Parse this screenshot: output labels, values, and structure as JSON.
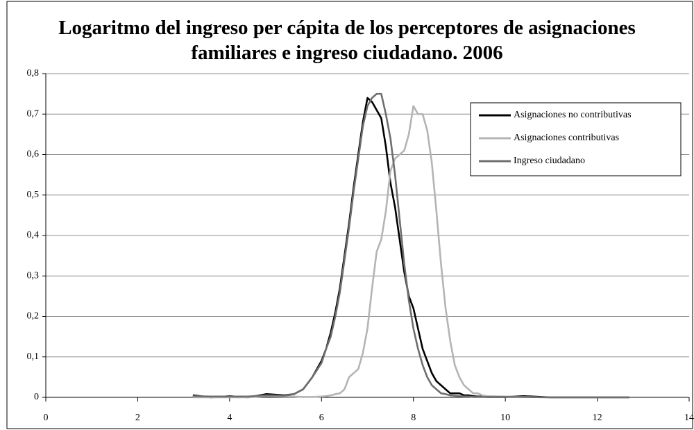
{
  "chart_data": {
    "type": "line",
    "title": "Logaritmo del ingreso per cápita de los perceptores de asignaciones familiares e ingreso ciudadano. 2006",
    "x": [
      3.2,
      3.6,
      4,
      4.4,
      4.8,
      5.2,
      5.4,
      5.6,
      5.8,
      6.0,
      6.1,
      6.2,
      6.3,
      6.4,
      6.5,
      6.6,
      6.7,
      6.8,
      6.9,
      7.0,
      7.1,
      7.2,
      7.3,
      7.4,
      7.5,
      7.6,
      7.7,
      7.8,
      7.9,
      8.0,
      8.1,
      8.2,
      8.3,
      8.4,
      8.5,
      8.6,
      8.7,
      8.8,
      8.9,
      9.0,
      9.1,
      9.2,
      9.3,
      9.4,
      9.5,
      9.6,
      10,
      10.4,
      11,
      12,
      12.7
    ],
    "series": [
      {
        "name": "Asignaciones no contributivas",
        "color": "#000000",
        "values": [
          0.005,
          0,
          0.003,
          0,
          0.008,
          0.005,
          0.008,
          0.02,
          0.05,
          0.09,
          0.12,
          0.16,
          0.21,
          0.27,
          0.35,
          0.43,
          0.52,
          0.6,
          0.68,
          0.74,
          0.73,
          0.71,
          0.69,
          0.62,
          0.53,
          0.47,
          0.39,
          0.31,
          0.25,
          0.22,
          0.17,
          0.12,
          0.09,
          0.06,
          0.04,
          0.03,
          0.02,
          0.01,
          0.01,
          0.01,
          0.005,
          0.005,
          0.003,
          0.002,
          0.002,
          0.001,
          0.001,
          0.003,
          0,
          0,
          0
        ]
      },
      {
        "name": "Asignaciones contributivas",
        "color": "#b4b4b4",
        "values": [
          0,
          0,
          0,
          0,
          0.003,
          0.002,
          0.002,
          0.001,
          0.001,
          0.002,
          0.003,
          0.005,
          0.008,
          0.01,
          0.02,
          0.05,
          0.06,
          0.07,
          0.11,
          0.17,
          0.27,
          0.36,
          0.39,
          0.46,
          0.56,
          0.59,
          0.6,
          0.61,
          0.65,
          0.72,
          0.7,
          0.7,
          0.66,
          0.58,
          0.46,
          0.33,
          0.22,
          0.14,
          0.08,
          0.05,
          0.03,
          0.02,
          0.01,
          0.01,
          0.005,
          0.003,
          0.002,
          0.001,
          0,
          0,
          0
        ]
      },
      {
        "name": "Ingreso ciudadano",
        "color": "#6e6e6e",
        "values": [
          0.003,
          0.002,
          0.002,
          0.002,
          0.005,
          0.004,
          0.008,
          0.02,
          0.05,
          0.085,
          0.12,
          0.15,
          0.2,
          0.26,
          0.34,
          0.42,
          0.51,
          0.59,
          0.67,
          0.72,
          0.74,
          0.75,
          0.75,
          0.7,
          0.64,
          0.55,
          0.44,
          0.33,
          0.24,
          0.17,
          0.12,
          0.08,
          0.05,
          0.03,
          0.02,
          0.01,
          0.008,
          0.005,
          0.004,
          0.003,
          0.002,
          0.002,
          0.001,
          0.001,
          0.001,
          0.001,
          0.001,
          0.001,
          0,
          0,
          0
        ]
      }
    ],
    "xlim": [
      0,
      14
    ],
    "xticks": [
      0,
      2,
      4,
      6,
      8,
      10,
      12,
      14
    ],
    "ylim": [
      0,
      0.8
    ],
    "yticks": [
      {
        "value": 0,
        "label": "0"
      },
      {
        "value": 0.1,
        "label": "0,1"
      },
      {
        "value": 0.2,
        "label": "0,2"
      },
      {
        "value": 0.3,
        "label": "0,3"
      },
      {
        "value": 0.4,
        "label": "0,4"
      },
      {
        "value": 0.5,
        "label": "0,5"
      },
      {
        "value": 0.6,
        "label": "0,6"
      },
      {
        "value": 0.7,
        "label": "0,7"
      },
      {
        "value": 0.8,
        "label": "0,8"
      }
    ],
    "grid": true,
    "legend": "upper right"
  }
}
